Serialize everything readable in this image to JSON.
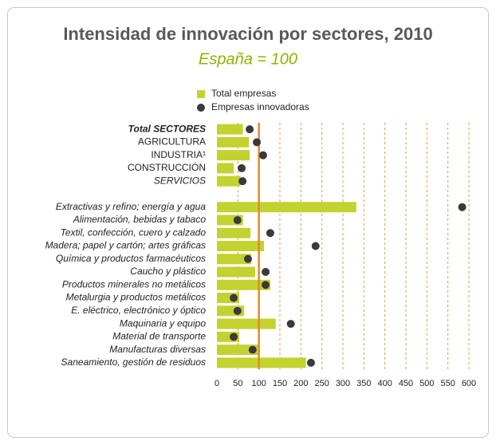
{
  "chart_data": {
    "type": "bar",
    "title": "Intensidad de innovación por sectores, 2010",
    "subtitle": "España = 100",
    "categories": [
      "Total SECTORES",
      "AGRICULTURA",
      "INDUSTRIA¹",
      "CONSTRUCCIÓN",
      "SERVICIOS",
      null,
      "Extractivas y refino; energía y agua",
      "Alimentación, bebidas y tabaco",
      "Textil, confección, cuero y calzado",
      "Madera; papel y cartón; artes gráficas",
      "Química y productos farmacéuticos",
      "Caucho y plástico",
      "Productos minerales no metálicos",
      "Metalurgia y productos metálicos",
      "E. eléctrico, electrónico y óptico",
      "Maquinaria y equipo",
      "Material de transporte",
      "Manufacturas diversas",
      "Saneamiento, gestión de residuos"
    ],
    "series": [
      {
        "name": "Total empresas",
        "color": "#c4d22f",
        "marker": "bar",
        "values": [
          62,
          76,
          78,
          40,
          56,
          null,
          332,
          62,
          80,
          112,
          82,
          91,
          127,
          53,
          65,
          140,
          53,
          100,
          212
        ]
      },
      {
        "name": "Empresas innovadoras",
        "color": "#3a3a3a",
        "marker": "dot",
        "values": [
          78,
          95,
          110,
          59,
          61,
          null,
          584,
          49,
          127,
          235,
          74,
          116,
          116,
          40,
          49,
          176,
          40,
          85,
          224
        ]
      }
    ],
    "xlim": [
      0,
      600
    ],
    "xticks": [
      0,
      50,
      100,
      150,
      200,
      250,
      300,
      350,
      400,
      450,
      500,
      550,
      600
    ],
    "grid": true,
    "reference_line": 100
  }
}
